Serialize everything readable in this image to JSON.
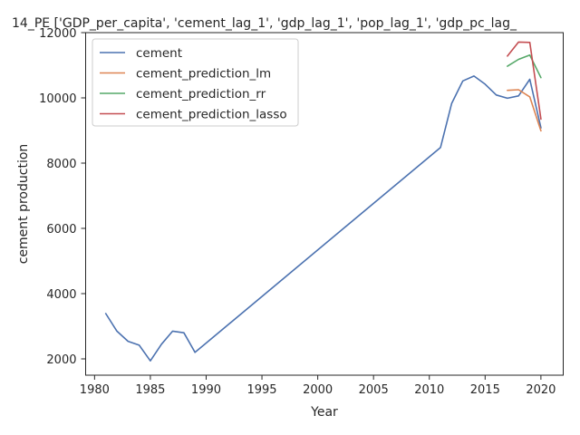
{
  "chart_data": {
    "type": "line",
    "title": "14_PE ['GDP_per_capita', 'cement_lag_1', 'gdp_lag_1', 'pop_lag_1', 'gdp_pc_lag_",
    "xlabel": "Year",
    "ylabel": "cement production",
    "xlim": [
      1979.2,
      2022
    ],
    "ylim": [
      1500,
      12000
    ],
    "xticks": [
      1980,
      1985,
      1990,
      1995,
      2000,
      2005,
      2010,
      2015,
      2020
    ],
    "yticks": [
      2000,
      4000,
      6000,
      8000,
      10000,
      12000
    ],
    "grid": false,
    "legend_position": "upper-left",
    "series": [
      {
        "name": "cement",
        "color": "#4c72b0",
        "x": [
          1981,
          1982,
          1983,
          1984,
          1985,
          1986,
          1987,
          1988,
          1989,
          2011,
          2012,
          2013,
          2014,
          2015,
          2016,
          2017,
          2018,
          2019,
          2020
        ],
        "y": [
          3390,
          2850,
          2540,
          2420,
          1940,
          2450,
          2850,
          2800,
          2200,
          8480,
          9830,
          10520,
          10670,
          10420,
          10090,
          9990,
          10060,
          10570,
          9080
        ]
      },
      {
        "name": "cement_prediction_lm",
        "color": "#dd8452",
        "x": [
          2017,
          2018,
          2019,
          2020
        ],
        "y": [
          10230,
          10250,
          10030,
          8990
        ]
      },
      {
        "name": "cement_prediction_rr",
        "color": "#55a868",
        "x": [
          2017,
          2018,
          2019,
          2020
        ],
        "y": [
          10970,
          11180,
          11310,
          10620
        ]
      },
      {
        "name": "cement_prediction_lasso",
        "color": "#c44e52",
        "x": [
          2017,
          2018,
          2019,
          2020
        ],
        "y": [
          11280,
          11710,
          11700,
          9350
        ]
      }
    ]
  }
}
